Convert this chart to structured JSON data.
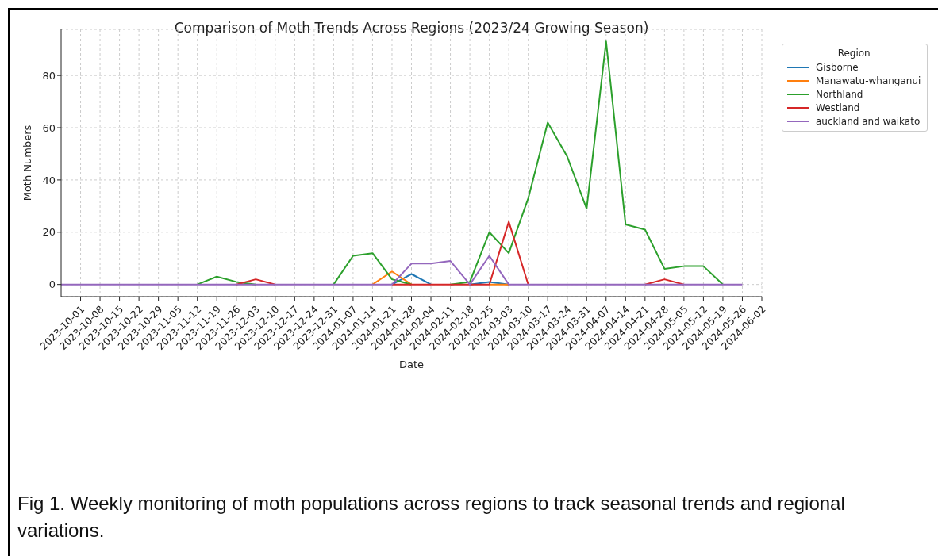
{
  "chart_data": {
    "type": "line",
    "title": "Comparison of Moth Trends Across Regions (2023/24 Growing Season)",
    "xlabel": "Date",
    "ylabel": "Moth Numbers",
    "legend_title": "Region",
    "x": [
      "2023-09-24",
      "2023-10-01",
      "2023-10-08",
      "2023-10-15",
      "2023-10-22",
      "2023-10-29",
      "2023-11-05",
      "2023-11-12",
      "2023-11-19",
      "2023-11-26",
      "2023-12-03",
      "2023-12-10",
      "2023-12-17",
      "2023-12-24",
      "2023-12-31",
      "2024-01-07",
      "2024-01-14",
      "2024-01-21",
      "2024-01-28",
      "2024-02-04",
      "2024-02-11",
      "2024-02-18",
      "2024-02-25",
      "2024-03-03",
      "2024-03-10",
      "2024-03-17",
      "2024-03-24",
      "2024-03-31",
      "2024-04-07",
      "2024-04-14",
      "2024-04-21",
      "2024-04-28",
      "2024-05-05",
      "2024-05-12",
      "2024-05-19",
      "2024-05-26"
    ],
    "series": [
      {
        "name": "Gisborne",
        "color": "#1f77b4",
        "values": [
          null,
          null,
          null,
          null,
          null,
          null,
          null,
          null,
          null,
          null,
          null,
          null,
          null,
          null,
          null,
          null,
          null,
          0,
          4,
          0,
          null,
          0,
          1,
          0,
          null,
          null,
          null,
          null,
          null,
          null,
          null,
          null,
          null,
          null,
          null,
          null
        ]
      },
      {
        "name": "Manawatu-whanganui",
        "color": "#ff7f0e",
        "values": [
          null,
          null,
          null,
          null,
          null,
          null,
          null,
          null,
          null,
          null,
          null,
          null,
          null,
          null,
          null,
          null,
          0,
          5,
          0,
          null,
          null,
          null,
          0,
          0,
          null,
          null,
          null,
          null,
          null,
          null,
          null,
          null,
          null,
          null,
          null,
          null
        ]
      },
      {
        "name": "Northland",
        "color": "#2ca02c",
        "values": [
          null,
          null,
          null,
          null,
          null,
          null,
          null,
          0,
          3,
          1,
          0,
          null,
          null,
          null,
          0,
          11,
          12,
          2,
          0,
          null,
          0,
          1,
          20,
          12,
          33,
          62,
          49,
          29,
          93,
          23,
          21,
          6,
          7,
          7,
          0,
          null
        ]
      },
      {
        "name": "Westland",
        "color": "#d62728",
        "values": [
          null,
          null,
          null,
          null,
          null,
          null,
          null,
          null,
          null,
          0,
          2,
          0,
          null,
          null,
          null,
          null,
          null,
          0,
          0,
          0,
          0,
          0,
          0,
          24,
          0,
          null,
          null,
          null,
          null,
          null,
          0,
          2,
          0,
          null,
          null,
          null
        ]
      },
      {
        "name": "auckland and waikato",
        "color": "#9467bd",
        "values": [
          0,
          0,
          0,
          0,
          0,
          0,
          0,
          0,
          0,
          0,
          0,
          0,
          0,
          0,
          0,
          0,
          0,
          0,
          8,
          8,
          9,
          0,
          11,
          0,
          0,
          0,
          0,
          0,
          0,
          0,
          0,
          0,
          0,
          0,
          0,
          0
        ]
      }
    ],
    "xlim": [
      "2023-09-24",
      "2024-06-02"
    ],
    "xticks": [
      "2023-10-01",
      "2023-10-08",
      "2023-10-15",
      "2023-10-22",
      "2023-10-29",
      "2023-11-05",
      "2023-11-12",
      "2023-11-19",
      "2023-11-26",
      "2023-12-03",
      "2023-12-10",
      "2023-12-17",
      "2023-12-24",
      "2023-12-31",
      "2024-01-07",
      "2024-01-14",
      "2024-01-21",
      "2024-01-28",
      "2024-02-04",
      "2024-02-11",
      "2024-02-18",
      "2024-02-25",
      "2024-03-03",
      "2024-03-10",
      "2024-03-17",
      "2024-03-24",
      "2024-03-31",
      "2024-04-07",
      "2024-04-14",
      "2024-04-21",
      "2024-04-28",
      "2024-05-05",
      "2024-05-12",
      "2024-05-19",
      "2024-05-26",
      "2024-06-02"
    ],
    "ylim": [
      -4.65,
      97.65
    ],
    "yticks": [
      0,
      20,
      40,
      60,
      80
    ],
    "grid": true,
    "legend": "top right",
    "line_style": "solid",
    "marker": "none",
    "annotations": [
      "Fig 1. Weekly monitoring of moth populations across regions to track seasonal trends and regional variations."
    ]
  }
}
